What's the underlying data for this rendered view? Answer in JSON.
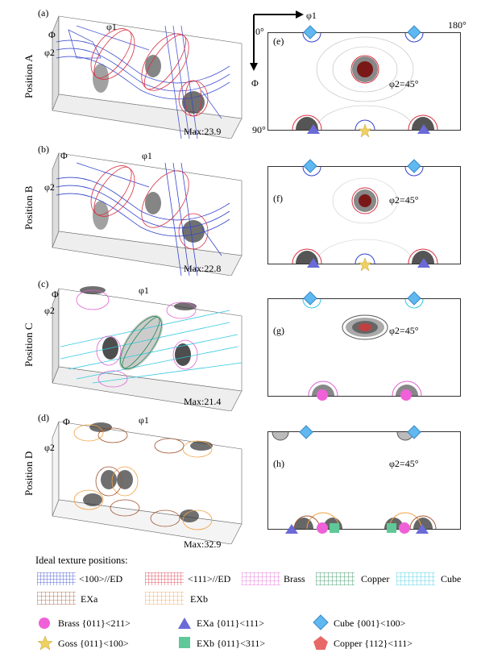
{
  "panels_left": [
    {
      "tag": "(a)",
      "position": "Position A",
      "max": "Max:23.9"
    },
    {
      "tag": "(b)",
      "position": "Position B",
      "max": "Max:22.8"
    },
    {
      "tag": "(c)",
      "position": "Position C",
      "max": "Max:21.4"
    },
    {
      "tag": "(d)",
      "position": "Position D",
      "max": "Max:32.9"
    }
  ],
  "panels_right": [
    {
      "tag": "(e)",
      "section": "φ2=45°"
    },
    {
      "tag": "(f)",
      "section": "φ2=45°"
    },
    {
      "tag": "(g)",
      "section": "φ2=45°"
    },
    {
      "tag": "(h)",
      "section": "φ2=45°"
    }
  ],
  "axes": {
    "phi1": "φ1",
    "Phi": "Φ",
    "phi2": "φ2",
    "zero": "0°",
    "deg180": "180°",
    "deg90": "90°"
  },
  "legend": {
    "title": "Ideal texture positions:",
    "fibres": [
      {
        "text": "<100>//ED",
        "color": "#3344cc"
      },
      {
        "text": "<111>//ED",
        "color": "#d93040"
      },
      {
        "text": "Brass",
        "color": "#e060d0"
      },
      {
        "text": "Copper",
        "color": "#1e8a50"
      },
      {
        "text": "Cube",
        "color": "#30c8e0"
      },
      {
        "text": "EXa",
        "color": "#a0522d"
      },
      {
        "text": "EXb",
        "color": "#f0a040"
      }
    ],
    "markers": [
      {
        "text": "Brass {011}<211>",
        "color": "#f060d8",
        "icon": "circle-icon"
      },
      {
        "text": "EXa {011}<111>",
        "color": "#6a6ad8",
        "icon": "triangle-icon"
      },
      {
        "text": "Cube {001}<100>",
        "color": "#60b8f0",
        "icon": "diamond-icon"
      },
      {
        "text": "Goss {011}<100>",
        "color": "#f0d060",
        "icon": "star-icon"
      },
      {
        "text": "EXb {011}<311>",
        "color": "#60c898",
        "icon": "square-icon"
      },
      {
        "text": "Copper {112}<111>",
        "color": "#e86868",
        "icon": "pentagon-icon"
      }
    ]
  }
}
